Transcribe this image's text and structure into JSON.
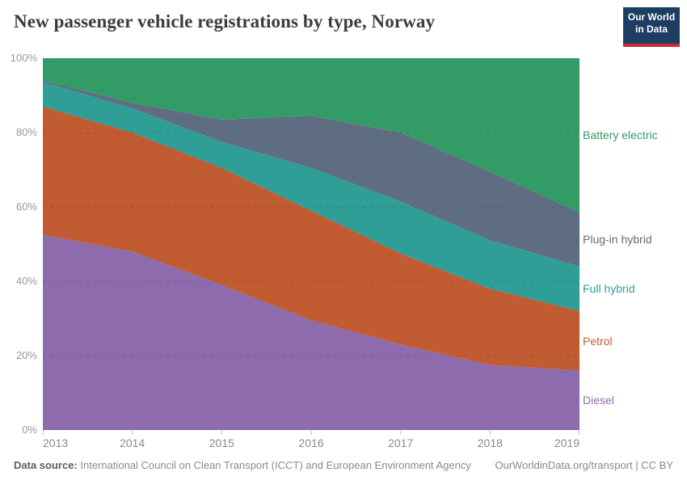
{
  "header": {
    "title": "New passenger vehicle registrations by type, Norway",
    "logo": {
      "line1": "Our World",
      "line2": "in Data",
      "bg_color": "#1d3d63",
      "bar_color": "#cf2b34"
    }
  },
  "chart_data": {
    "type": "area",
    "stacked": true,
    "normalized_percent": true,
    "title": "New passenger vehicle registrations by type, Norway",
    "x": [
      2013,
      2014,
      2015,
      2016,
      2017,
      2018,
      2019
    ],
    "series": [
      {
        "name": "Diesel",
        "color": "#8d6bad",
        "values": [
          52.5,
          48.0,
          39.0,
          29.5,
          23.0,
          17.5,
          16.0
        ]
      },
      {
        "name": "Petrol",
        "color": "#c05b32",
        "values": [
          34.5,
          32.0,
          31.5,
          29.5,
          24.5,
          20.5,
          16.0
        ]
      },
      {
        "name": "Full hybrid",
        "color": "#2f9e96",
        "values": [
          6.6,
          6.5,
          7.0,
          11.5,
          14.0,
          13.0,
          12.0
        ]
      },
      {
        "name": "Plug-in hybrid",
        "color": "#5e6d82",
        "values": [
          0.4,
          1.5,
          6.0,
          14.0,
          18.5,
          18.5,
          14.5
        ]
      },
      {
        "name": "Battery electric",
        "color": "#339b66",
        "values": [
          6.0,
          12.0,
          16.5,
          15.5,
          20.0,
          30.5,
          41.5
        ]
      }
    ],
    "y_ticks": [
      "100%",
      "80%",
      "60%",
      "40%",
      "20%",
      "0%"
    ],
    "ylim": [
      0,
      100
    ],
    "grid": "dashed horizontal at 20/40/60/80",
    "legend_position": "right"
  },
  "footer": {
    "source_label": "Data source:",
    "source_text": " International Council on Clean Transport (ICCT) and European Environment Agency",
    "credit": "OurWorldinData.org/transport | CC BY"
  }
}
